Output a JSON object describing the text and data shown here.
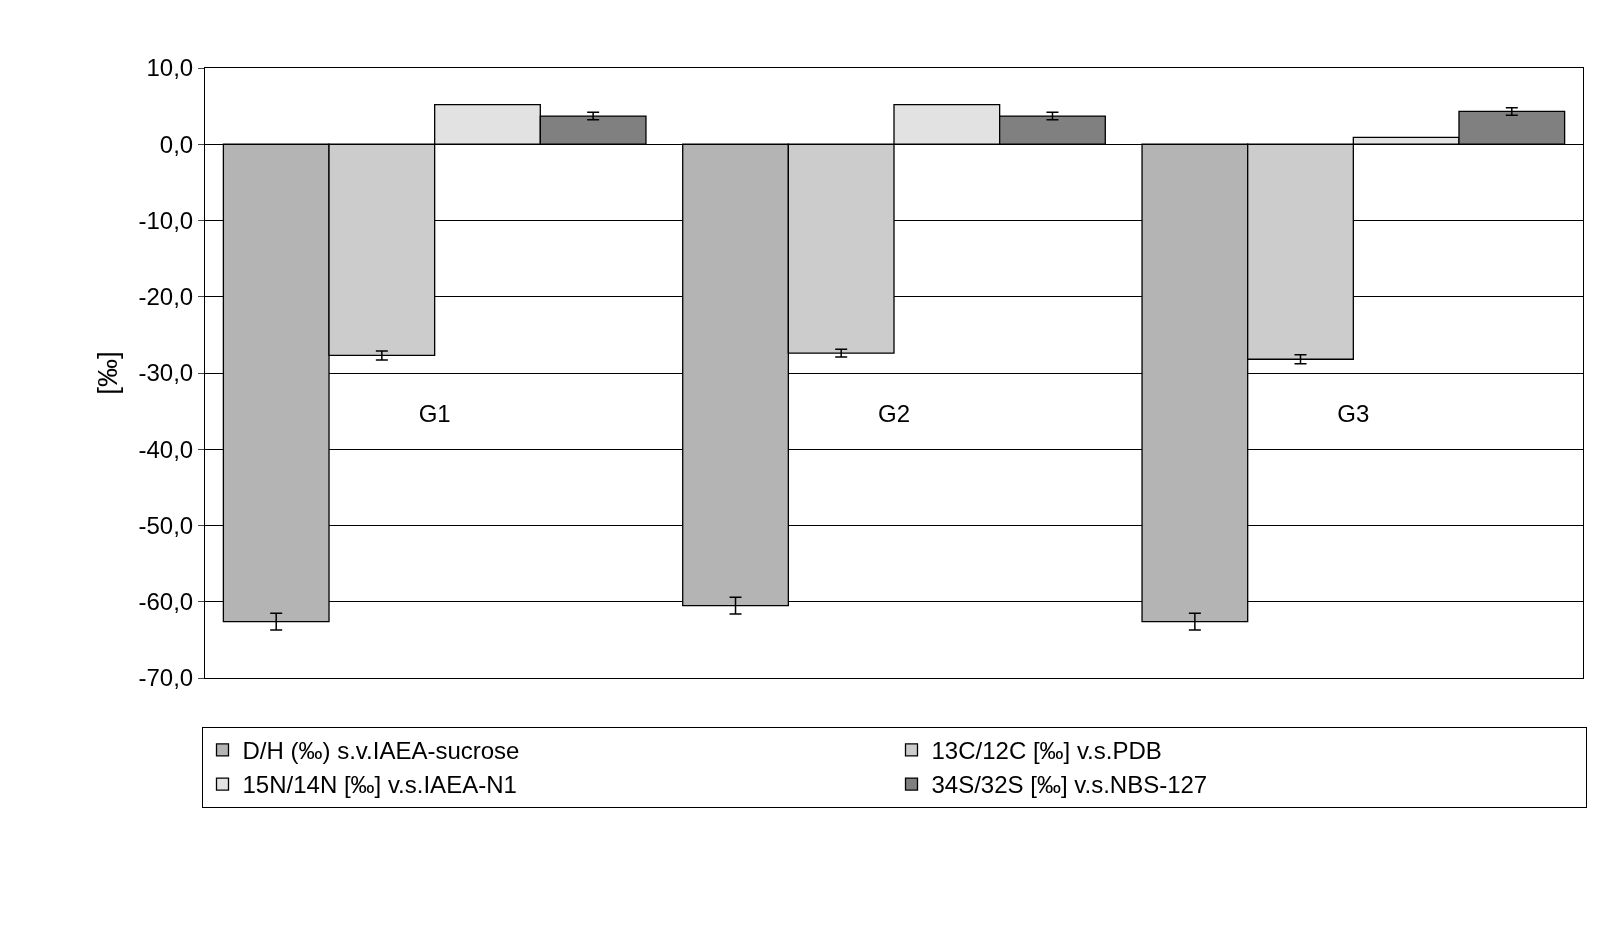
{
  "chart_data": {
    "type": "bar",
    "ylabel": "[‰]",
    "categories": [
      "G1",
      "G2",
      "G3"
    ],
    "series": [
      {
        "name": "D/H (‰) s.v.IAEA-sucrose",
        "color": "#b4b4b4",
        "values": [
          -62.6,
          -60.5,
          -62.6
        ],
        "errors": [
          1.1,
          1.1,
          1.1
        ]
      },
      {
        "name": "13C/12C [‰] v.s.PDB",
        "color": "#cccccc",
        "values": [
          -27.7,
          -27.4,
          -28.2
        ],
        "errors": [
          0.6,
          0.5,
          0.6
        ]
      },
      {
        "name": "15N/14N [‰] v.s.IAEA-N1",
        "color": "#e2e2e2",
        "values": [
          5.2,
          5.2,
          0.9
        ]
      },
      {
        "name": "34S/32S [‰] v.s.NBS-127",
        "color": "#808080",
        "values": [
          3.7,
          3.7,
          4.3
        ],
        "errors": [
          0.5,
          0.5,
          0.5
        ]
      }
    ],
    "ylim": [
      -70,
      10
    ],
    "yticks": [
      {
        "value": -70,
        "label": "-70,0"
      },
      {
        "value": -60,
        "label": "-60,0"
      },
      {
        "value": -50,
        "label": "-50,0"
      },
      {
        "value": -40,
        "label": "-40,0"
      },
      {
        "value": -30,
        "label": "-30,0"
      },
      {
        "value": -20,
        "label": "-20,0"
      },
      {
        "value": -10,
        "label": "-10,0"
      },
      {
        "value": 0,
        "label": "0,0"
      },
      {
        "value": 10,
        "label": "10,0"
      }
    ],
    "grid": "y",
    "legend": "bottom"
  }
}
